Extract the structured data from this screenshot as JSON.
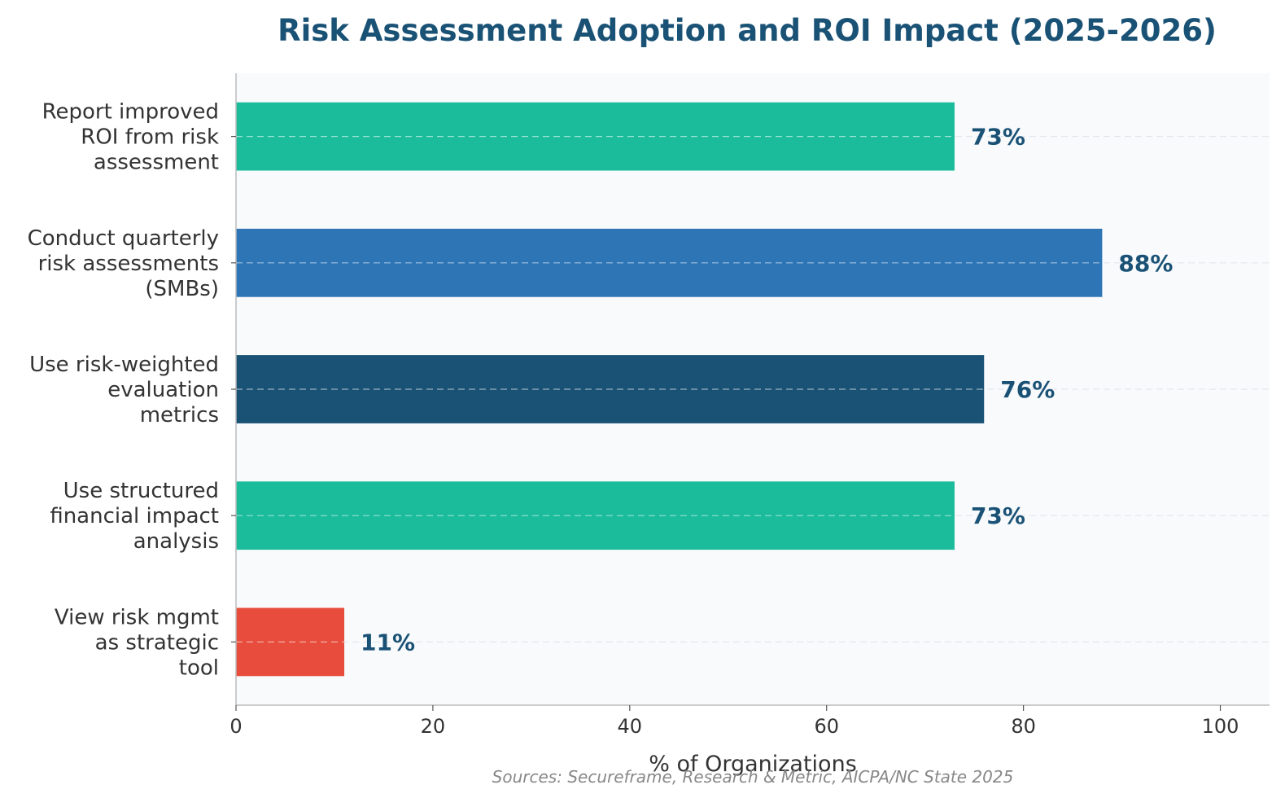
{
  "chart_data": {
    "type": "bar",
    "orientation": "horizontal",
    "title": "Risk Assessment Adoption and ROI Impact (2025-2026)",
    "xlabel": "% of Organizations",
    "ylabel": "",
    "xlim": [
      0,
      105
    ],
    "xticks": [
      0,
      20,
      40,
      60,
      80,
      100
    ],
    "categories": [
      "Report improved ROI from risk assessment",
      "Conduct quarterly risk assessments (SMBs)",
      "Use risk-weighted evaluation metrics",
      "Use structured financial impact analysis",
      "View risk mgmt as strategic tool"
    ],
    "category_lines": [
      [
        "Report improved",
        "ROI from risk",
        "assessment"
      ],
      [
        "Conduct quarterly",
        "risk assessments",
        "(SMBs)"
      ],
      [
        "Use risk-weighted",
        "evaluation",
        "metrics"
      ],
      [
        "Use structured",
        "financial impact",
        "analysis"
      ],
      [
        "View risk mgmt",
        "as strategic",
        "tool"
      ]
    ],
    "values": [
      73,
      88,
      76,
      73,
      11
    ],
    "value_labels": [
      "73%",
      "88%",
      "76%",
      "73%",
      "11%"
    ],
    "bar_colors": [
      "#1abc9c",
      "#2e75b6",
      "#1a5276",
      "#1abc9c",
      "#e74c3c"
    ],
    "grid": "horizontal dashed",
    "legend": "none",
    "source": "Sources: Secureframe, Research & Metric, AICPA/NC State 2025"
  },
  "colors": {
    "title": "#1a5276",
    "value_label": "#1a5276",
    "plot_background": "#f8fafc",
    "axis": "#bbbbbb",
    "text": "#333333",
    "source": "#888888"
  }
}
